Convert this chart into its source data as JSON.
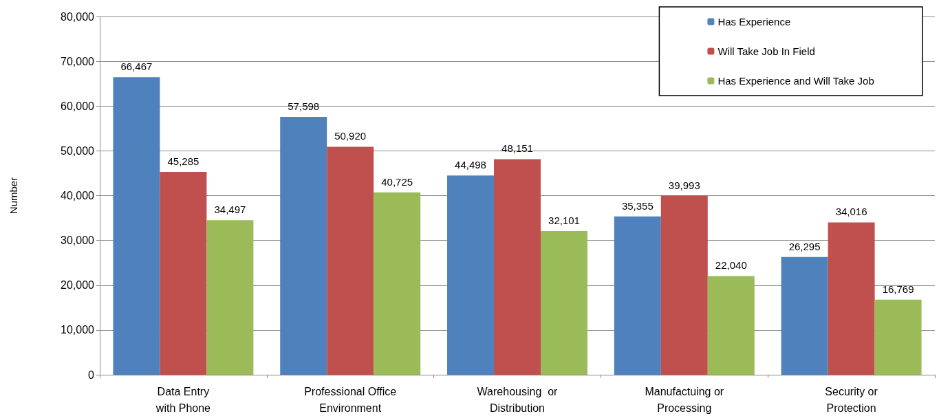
{
  "chart_data": {
    "type": "bar",
    "ylabel": "Number",
    "categories": [
      "Data Entry\nwith Phone",
      "Professional Office\nEnvironment",
      "Warehousing  or\nDistribution",
      "Manufactuing or\nProcessing",
      "Security or\nProtection"
    ],
    "series": [
      {
        "name": "Has Experience",
        "color": "#4f81bd",
        "values": [
          66467,
          57598,
          44498,
          35355,
          26295
        ],
        "value_labels": [
          "66,467",
          "57,598",
          "44,498",
          "35,355",
          "26,295"
        ]
      },
      {
        "name": "Will Take Job In Field",
        "color": "#c0504d",
        "values": [
          45285,
          50920,
          48151,
          39993,
          34016
        ],
        "value_labels": [
          "45,285",
          "50,920",
          "48,151",
          "39,993",
          "34,016"
        ]
      },
      {
        "name": "Has Experience and Will Take Job",
        "color": "#9bbb59",
        "values": [
          34497,
          40725,
          32101,
          22040,
          16769
        ],
        "value_labels": [
          "34,497",
          "40,725",
          "32,101",
          "22,040",
          "16,769"
        ]
      }
    ],
    "ylim": [
      0,
      80000
    ],
    "yticks": [
      0,
      {
        "value": 10000,
        "label": "10,000"
      },
      {
        "value": 20000,
        "label": "20,000"
      },
      {
        "value": 30000,
        "label": "30,000"
      },
      {
        "value": 40000,
        "label": "40,000"
      },
      {
        "value": 50000,
        "label": "50,000"
      },
      {
        "value": 60000,
        "label": "60,000"
      },
      {
        "value": 70000,
        "label": "70,000"
      },
      {
        "value": 80000,
        "label": "80,000"
      }
    ],
    "grid": "y",
    "legend": "top right"
  }
}
